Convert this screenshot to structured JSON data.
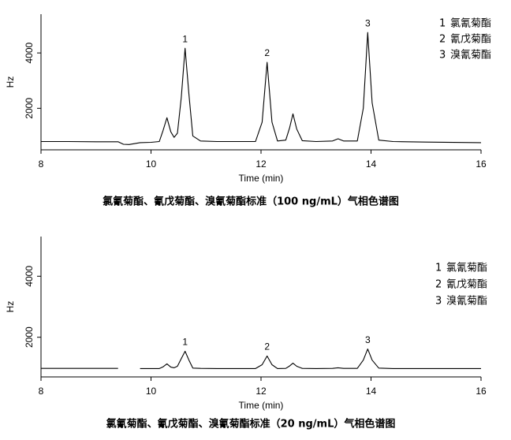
{
  "chart_data": [
    {
      "type": "line",
      "title": "氯氰菊酯、氰戊菊酯、溴氰菊酯标准（100 ng/mL）气相色谱图",
      "xlabel": "Time (min)",
      "ylabel": "Hz",
      "x": [
        8,
        8.5,
        9.0,
        9.4,
        9.5,
        9.6,
        9.8,
        10.0,
        10.15,
        10.22,
        10.29,
        10.36,
        10.42,
        10.48,
        10.55,
        10.62,
        10.69,
        10.76,
        10.9,
        11.2,
        11.6,
        11.9,
        12.02,
        12.11,
        12.2,
        12.3,
        12.45,
        12.52,
        12.58,
        12.65,
        12.75,
        13.0,
        13.3,
        13.4,
        13.5,
        13.75,
        13.86,
        13.94,
        14.02,
        14.14,
        14.4,
        15.0,
        16.0
      ],
      "series": [
        {
          "color": "#000000",
          "values": [
            800,
            800,
            790,
            790,
            700,
            690,
            760,
            770,
            800,
            1200,
            1660,
            1150,
            950,
            1100,
            2400,
            4170,
            2500,
            1000,
            820,
            800,
            800,
            800,
            1500,
            3660,
            1500,
            820,
            850,
            1300,
            1800,
            1250,
            830,
            800,
            820,
            900,
            820,
            820,
            2000,
            4740,
            2200,
            850,
            800,
            780,
            760
          ]
        }
      ],
      "xlim": [
        8,
        16
      ],
      "ylim": [
        500,
        5400
      ],
      "xticks": [
        8,
        10,
        12,
        14,
        16
      ],
      "yticks": [
        2000,
        4000
      ],
      "annotations": [
        {
          "text": "1",
          "x": 10.62,
          "y": 4170
        },
        {
          "text": "2",
          "x": 12.11,
          "y": 3660
        },
        {
          "text": "3",
          "x": 13.94,
          "y": 4740
        }
      ],
      "legend": [
        {
          "number": "1",
          "name": "氯氰菊酯"
        },
        {
          "number": "2",
          "name": "氰戊菊酯"
        },
        {
          "number": "3",
          "name": "溴氰菊酯"
        }
      ]
    },
    {
      "type": "line",
      "title": "氯氰菊酯、氰戊菊酯、溴氰菊酯标准（20 ng/mL）气相色谱图",
      "xlabel": "Time (min)",
      "ylabel": "Hz",
      "x": [
        8,
        8.5,
        9.0,
        9.4,
        9.5,
        9.6,
        9.8,
        10.0,
        10.15,
        10.22,
        10.29,
        10.36,
        10.42,
        10.48,
        10.55,
        10.62,
        10.69,
        10.76,
        10.9,
        11.2,
        11.6,
        11.9,
        12.02,
        12.11,
        12.2,
        12.3,
        12.45,
        12.52,
        12.58,
        12.65,
        12.75,
        13.0,
        13.3,
        13.4,
        13.5,
        13.75,
        13.86,
        13.94,
        14.02,
        14.14,
        14.4,
        15.0,
        16.0
      ],
      "series": [
        {
          "color": "#000000",
          "values": [
            980,
            980,
            980,
            980,
            null,
            null,
            975,
            975,
            975,
            1030,
            1130,
            1020,
            1000,
            1050,
            1300,
            1540,
            1250,
            990,
            980,
            975,
            975,
            975,
            1100,
            1385,
            1100,
            975,
            980,
            1060,
            1150,
            1050,
            980,
            975,
            980,
            1000,
            980,
            980,
            1250,
            1615,
            1250,
            990,
            975,
            975,
            975
          ]
        }
      ],
      "xlim": [
        8,
        16
      ],
      "ylim": [
        700,
        5300
      ],
      "xticks": [
        8,
        10,
        12,
        14,
        16
      ],
      "yticks": [
        2000,
        4000
      ],
      "annotations": [
        {
          "text": "1",
          "x": 10.62,
          "y": 1540
        },
        {
          "text": "2",
          "x": 12.11,
          "y": 1385
        },
        {
          "text": "3",
          "x": 13.94,
          "y": 1615
        }
      ],
      "legend": [
        {
          "number": "1",
          "name": "氯氰菊酯"
        },
        {
          "number": "2",
          "name": "氰戊菊酯"
        },
        {
          "number": "3",
          "name": "溴氰菊酯"
        }
      ]
    }
  ]
}
